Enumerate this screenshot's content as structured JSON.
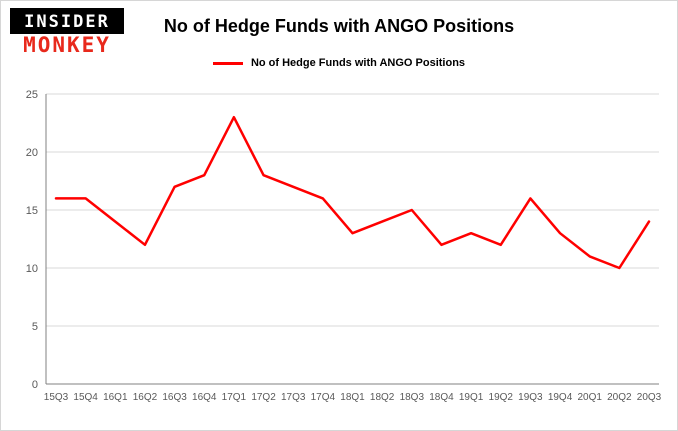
{
  "header": {
    "logo": {
      "line1": "INSIDER",
      "line2": "MONKEY"
    },
    "title": "No of Hedge Funds with ANGO Positions"
  },
  "legend": {
    "label": "No of Hedge Funds with ANGO Positions"
  },
  "colors": {
    "line": "#ff0000",
    "logo_accent": "#e8291c",
    "grid": "#d9d9d9",
    "axis": "#808080",
    "tick_text": "#595959"
  },
  "chart_data": {
    "type": "line",
    "title": "No of Hedge Funds with ANGO Positions",
    "categories": [
      "15Q3",
      "15Q4",
      "16Q1",
      "16Q2",
      "16Q3",
      "16Q4",
      "17Q1",
      "17Q2",
      "17Q3",
      "17Q4",
      "18Q1",
      "18Q2",
      "18Q3",
      "18Q4",
      "19Q1",
      "19Q2",
      "19Q3",
      "19Q4",
      "20Q1",
      "20Q2",
      "20Q3"
    ],
    "series": [
      {
        "name": "No of Hedge Funds with ANGO Positions",
        "values": [
          16,
          16,
          14,
          12,
          17,
          18,
          23,
          18,
          17,
          16,
          13,
          14,
          15,
          12,
          13,
          12,
          16,
          13,
          11,
          10,
          14
        ]
      }
    ],
    "xlabel": "",
    "ylabel": "",
    "ylim": [
      0,
      25
    ],
    "yticks": [
      0,
      5,
      10,
      15,
      20,
      25
    ],
    "grid": true,
    "legend_position": "top"
  }
}
